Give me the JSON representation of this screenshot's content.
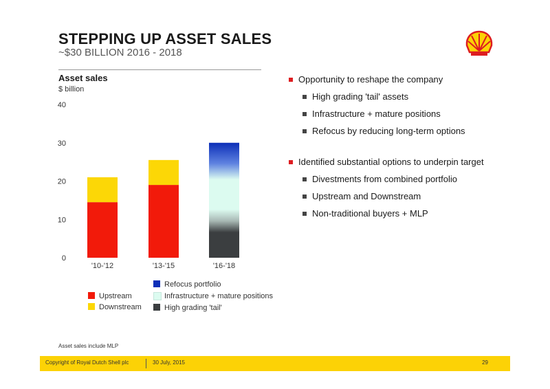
{
  "header": {
    "title": "STEPPING UP ASSET SALES",
    "subtitle": "~$30 BILLION 2016 - 2018"
  },
  "logo": {
    "icon": "shell-pecten-icon",
    "colors": {
      "fill": "#fcd206",
      "outline": "#dd1d21"
    }
  },
  "chart_data": {
    "type": "bar",
    "title": "Asset sales",
    "ylabel": "$ billion",
    "xlabel": "",
    "ylim": [
      0,
      40
    ],
    "yticks": [
      "0",
      "10",
      "20",
      "30",
      "40"
    ],
    "categories": [
      "'10-'12",
      "'13-'15",
      "'16-'18"
    ],
    "stacked": true,
    "grid": false,
    "series": [
      {
        "name": "Upstream",
        "color": "#f21a0a",
        "values": [
          14.5,
          19,
          0
        ]
      },
      {
        "name": "Downstream",
        "color": "#fcd706",
        "values": [
          6.5,
          6.5,
          0
        ]
      },
      {
        "name": "High grading 'tail'",
        "color": "#3b3e40",
        "values": [
          0,
          0,
          7
        ]
      },
      {
        "name": "Infrastructure + mature positions",
        "color": "#dcfbf0",
        "values": [
          0,
          0,
          16.5
        ]
      },
      {
        "name": "Refocus portfolio",
        "color": "#0c2fb8",
        "values": [
          0,
          0,
          6.5
        ]
      }
    ],
    "gradient_third_bar": true
  },
  "legend": {
    "left": [
      {
        "label": "Upstream",
        "color": "#f21a0a"
      },
      {
        "label": "Downstream",
        "color": "#fcd706"
      }
    ],
    "right": [
      {
        "label": "Refocus portfolio",
        "color": "#0c2fb8"
      },
      {
        "label": "Infrastructure + mature positions",
        "color": "#dcfbf0"
      },
      {
        "label": "High grading 'tail'",
        "color": "#3b3e40"
      }
    ]
  },
  "bullets": [
    {
      "text": "Opportunity to reshape the company",
      "subs": [
        "High grading 'tail' assets",
        "Infrastructure + mature positions",
        "Refocus by reducing long-term options"
      ]
    },
    {
      "text": "Identified substantial options to underpin target",
      "subs": [
        "Divestments from combined portfolio",
        "Upstream and Downstream",
        "Non-traditional buyers + MLP"
      ]
    }
  ],
  "footnote": "Asset sales include MLP",
  "footer": {
    "copyright": "Copyright of Royal Dutch Shell plc",
    "date": "30 July, 2015",
    "page": "29",
    "color": "#fcd206"
  }
}
